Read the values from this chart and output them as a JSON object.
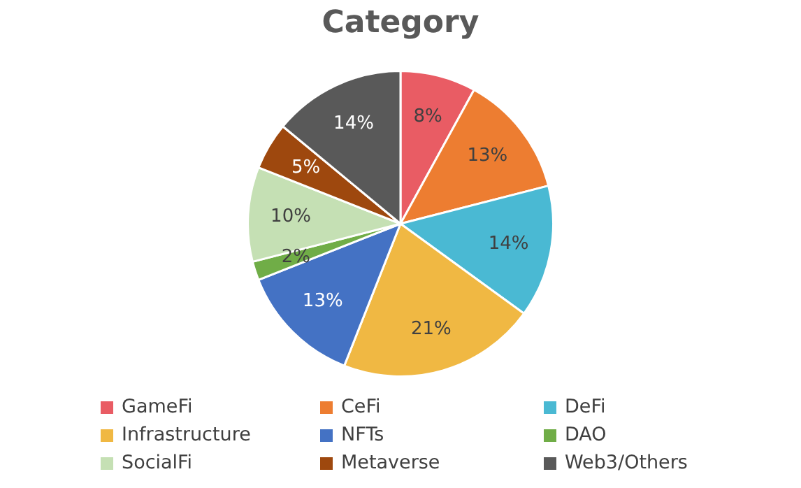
{
  "chart_data": {
    "type": "pie",
    "title": "Category",
    "categories": [
      "GameFi",
      "CeFi",
      "DeFi",
      "Infrastructure",
      "NFTs",
      "DAO",
      "SocialFi",
      "Metaverse",
      "Web3/Others"
    ],
    "values": [
      8,
      13,
      14,
      21,
      13,
      2,
      10,
      5,
      14
    ],
    "value_labels": [
      "8%",
      "13%",
      "14%",
      "21%",
      "13%",
      "2%",
      "10%",
      "5%",
      "14%"
    ],
    "colors": [
      "#e95c64",
      "#ed7d31",
      "#4ab9d3",
      "#f0b843",
      "#4472c4",
      "#70ad47",
      "#c5e0b4",
      "#9e480e",
      "#595959"
    ],
    "legend": "bottom"
  }
}
